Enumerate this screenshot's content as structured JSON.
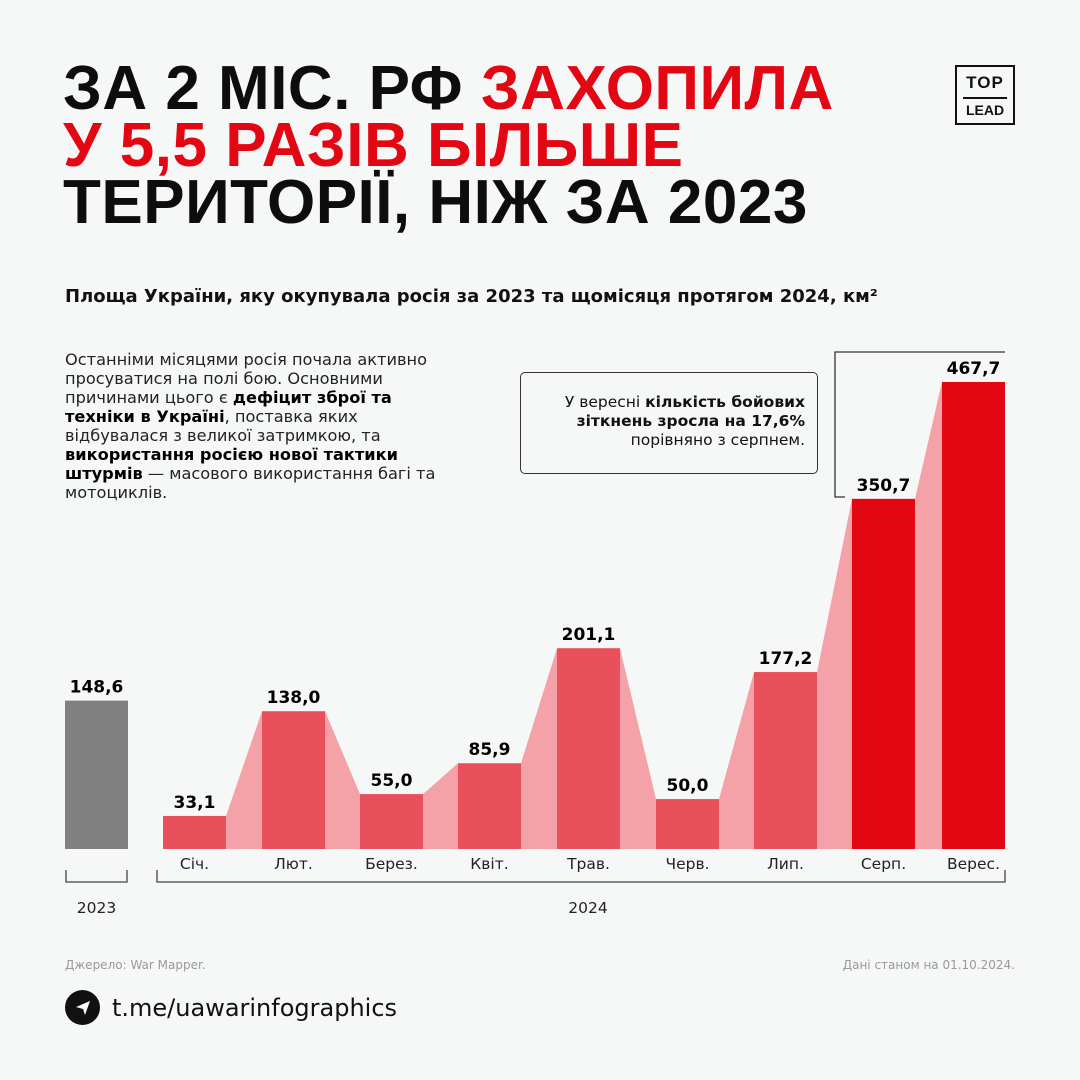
{
  "title": {
    "line1_black": "ЗА 2 МІС. РФ ",
    "line1_red": "ЗАХОПИЛА",
    "line2_red": "У 5,5 РАЗІВ БІЛЬШЕ",
    "line3_black": "ТЕРИТОРІЇ, НІЖ ЗА 2023"
  },
  "logo": {
    "top": "TOP",
    "bottom": "LEAD"
  },
  "description": {
    "p1": "Останніми місяцями росія почала активно просуватися на полі бою. Основними причинами цього є ",
    "b1": "дефіцит зброї та техніки в Україні",
    "p2": ", поставка яких відбувалася з великої затримкою, та ",
    "b2": "використання росією нової тактики штурмів",
    "p3": " — масового використання багі та мотоциклів."
  },
  "callout": {
    "p1": "У вересні ",
    "b1": "кількість бойових зіткнень зросла на 17,6%",
    "p2": " порівняно з серпнем."
  },
  "footer": {
    "source": "Джерело: War Mapper.",
    "date": "Дані станом на 01.10.2024.",
    "telegram": "t.me/uawarinfographics"
  },
  "colors": {
    "accent": "#e30613",
    "bar": "#e8505b",
    "connector": "#f4a1a7",
    "bar2023": "#808080"
  },
  "chart_data": {
    "type": "bar",
    "title": "Площа України, яку окупувала росія за 2023 та щомісяця протягом 2024, км²",
    "unit": "км²",
    "groups": [
      {
        "label": "2023",
        "categories": [
          ""
        ],
        "values": [
          148.6
        ],
        "labels": [
          "148,6"
        ]
      },
      {
        "label": "2024",
        "categories": [
          "Січ.",
          "Лют.",
          "Берез.",
          "Квіт.",
          "Трав.",
          "Черв.",
          "Лип.",
          "Серп.",
          "Верес."
        ],
        "values": [
          33.1,
          138.0,
          55.0,
          85.9,
          201.1,
          50.0,
          177.2,
          350.7,
          467.7
        ],
        "labels": [
          "33,1",
          "138,0",
          "55,0",
          "85,9",
          "201,1",
          "50,0",
          "177,2",
          "350,7",
          "467,7"
        ],
        "highlighted": [
          "Серп.",
          "Верес."
        ]
      }
    ]
  }
}
